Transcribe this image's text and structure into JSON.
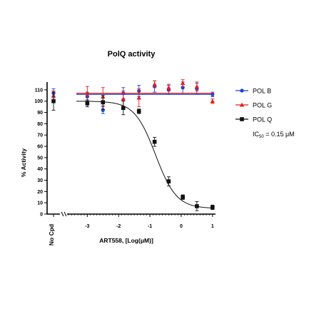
{
  "chart_data": {
    "type": "scatter",
    "title": "PolQ activity",
    "xlabel": "ART558, [Log(μM)]",
    "ylabel": "% Activity",
    "no_cpd_label": "No Cpd",
    "xlim": [
      -3.6,
      1.05
    ],
    "ylim": [
      0,
      115
    ],
    "x_ticks": [
      -3,
      -2,
      -1,
      0,
      1
    ],
    "y_ticks": [
      0,
      10,
      20,
      30,
      40,
      50,
      60,
      70,
      80,
      90,
      100,
      110
    ],
    "series": [
      {
        "name": "POL B",
        "color": "#1f3fd6",
        "marker": "circle",
        "fit": "flat",
        "fit_y": 106,
        "no_cpd": {
          "y": 107,
          "err": 4
        },
        "points": [
          {
            "x": -3.0,
            "y": 104,
            "err": 4
          },
          {
            "x": -2.5,
            "y": 92,
            "err": 3
          },
          {
            "x": -1.85,
            "y": 107,
            "err": 5
          },
          {
            "x": -1.35,
            "y": 109,
            "err": 5
          },
          {
            "x": -0.85,
            "y": 113,
            "err": 5
          },
          {
            "x": -0.4,
            "y": 110,
            "err": 4
          },
          {
            "x": 0.05,
            "y": 112,
            "err": 5
          },
          {
            "x": 0.5,
            "y": 111,
            "err": 5
          },
          {
            "x": 1.0,
            "y": 106,
            "err": 2
          }
        ]
      },
      {
        "name": "POL G",
        "color": "#e02020",
        "marker": "triangle",
        "fit": "flat",
        "fit_y": 107,
        "no_cpd": {
          "y": 105,
          "err": 4
        },
        "points": [
          {
            "x": -3.0,
            "y": 107,
            "err": 6
          },
          {
            "x": -2.5,
            "y": 104,
            "err": 8
          },
          {
            "x": -1.85,
            "y": 102,
            "err": 7
          },
          {
            "x": -1.35,
            "y": 103,
            "err": 8
          },
          {
            "x": -0.85,
            "y": 115,
            "err": 3
          },
          {
            "x": -0.4,
            "y": 112,
            "err": 3
          },
          {
            "x": 0.05,
            "y": 116,
            "err": 3
          },
          {
            "x": 0.5,
            "y": 113,
            "err": 4
          },
          {
            "x": 1.0,
            "y": 100,
            "err": 2
          }
        ]
      },
      {
        "name": "POL Q",
        "color": "#111111",
        "marker": "square",
        "fit": "sigmoid",
        "fit_top": 100,
        "fit_bottom": 5,
        "fit_logic50": -0.82,
        "fit_hill": 1.3,
        "no_cpd": {
          "y": 100,
          "err": 8
        },
        "points": [
          {
            "x": -3.0,
            "y": 98,
            "err": 3
          },
          {
            "x": -2.5,
            "y": 99,
            "err": 6
          },
          {
            "x": -1.85,
            "y": 94,
            "err": 6
          },
          {
            "x": -1.35,
            "y": 91,
            "err": 2
          },
          {
            "x": -0.85,
            "y": 64,
            "err": 4
          },
          {
            "x": -0.4,
            "y": 29,
            "err": 4
          },
          {
            "x": 0.05,
            "y": 15,
            "err": 2
          },
          {
            "x": 0.5,
            "y": 7,
            "err": 4
          },
          {
            "x": 1.0,
            "y": 6,
            "err": 2
          }
        ]
      }
    ],
    "annotation": {
      "prefix": "IC",
      "sub": "50",
      "suffix": " = 0.15 μM"
    }
  }
}
